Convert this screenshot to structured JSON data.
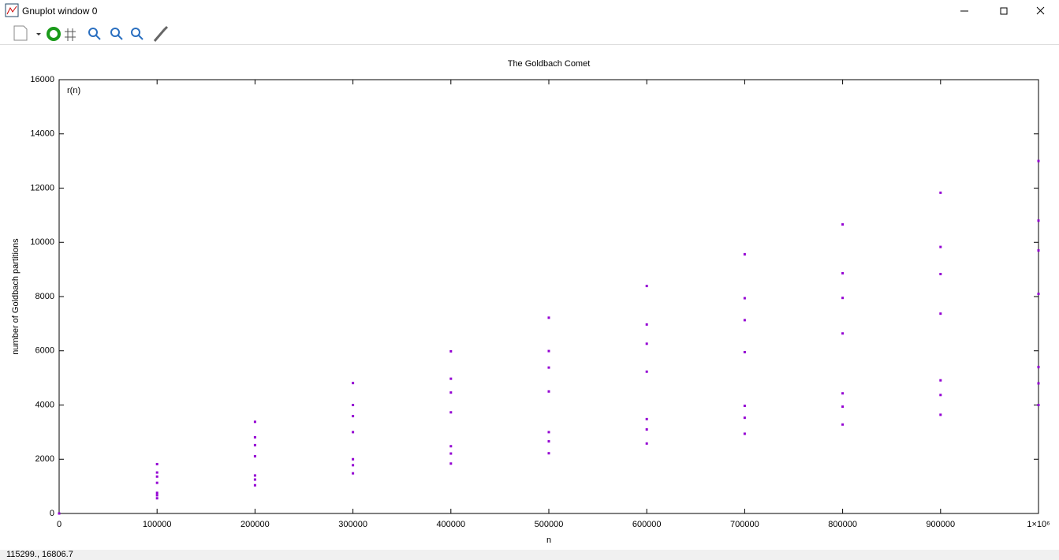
{
  "window": {
    "title": "Gnuplot window 0",
    "status": "115299., 16806.7"
  },
  "chart_data": {
    "type": "scatter",
    "title": "The Goldbach Comet",
    "x_label": "n",
    "y_label": "number of Goldbach partitions",
    "legend": "top-left",
    "grid": false,
    "xlim": [
      0,
      1000000
    ],
    "ylim": [
      0,
      16000
    ],
    "xticks": [
      0,
      100000,
      200000,
      300000,
      400000,
      500000,
      600000,
      700000,
      800000,
      900000,
      {
        "value": 1000000,
        "label": "1×10⁶"
      }
    ],
    "yticks": [
      0,
      2000,
      4000,
      6000,
      8000,
      10000,
      12000,
      14000,
      16000
    ],
    "series": [
      {
        "name": "r(n)",
        "color": "#9400d3",
        "x": [
          0,
          100000,
          200000,
          300000,
          400000,
          500000,
          600000,
          700000,
          800000,
          900000,
          1000000,
          100000,
          200000,
          300000,
          400000,
          500000,
          600000,
          700000,
          800000,
          900000,
          1000000,
          100000,
          200000,
          300000,
          400000,
          500000,
          600000,
          700000,
          800000,
          900000,
          1000000,
          100000,
          200000,
          300000,
          400000,
          500000,
          600000,
          700000,
          800000,
          900000,
          1000000,
          100000,
          200000,
          300000,
          400000,
          500000,
          600000,
          700000,
          800000,
          900000,
          1000000,
          100000,
          200000,
          300000,
          400000,
          500000,
          600000,
          700000,
          800000,
          900000,
          1000000,
          100000,
          200000,
          300000,
          400000,
          500000,
          600000,
          700000,
          800000,
          900000,
          1000000
        ],
        "values": [
          0,
          560,
          1040,
          1480,
          1840,
          2220,
          2580,
          2940,
          3280,
          3640,
          4000,
          670,
          1250,
          1780,
          2210,
          2660,
          3100,
          3530,
          3940,
          4370,
          4800,
          760,
          1400,
          2000,
          2480,
          3000,
          3480,
          3970,
          4430,
          4910,
          5400,
          1130,
          2110,
          3000,
          3730,
          4500,
          5230,
          5950,
          6640,
          7370,
          8100,
          1360,
          2520,
          3590,
          4460,
          5380,
          6260,
          7130,
          7950,
          8830,
          9700,
          1510,
          2810,
          4000,
          4970,
          5990,
          6970,
          7940,
          8860,
          9830,
          10800,
          1820,
          3380,
          4810,
          5980,
          7220,
          8390,
          9560,
          10660,
          11830,
          13000
        ]
      }
    ]
  }
}
